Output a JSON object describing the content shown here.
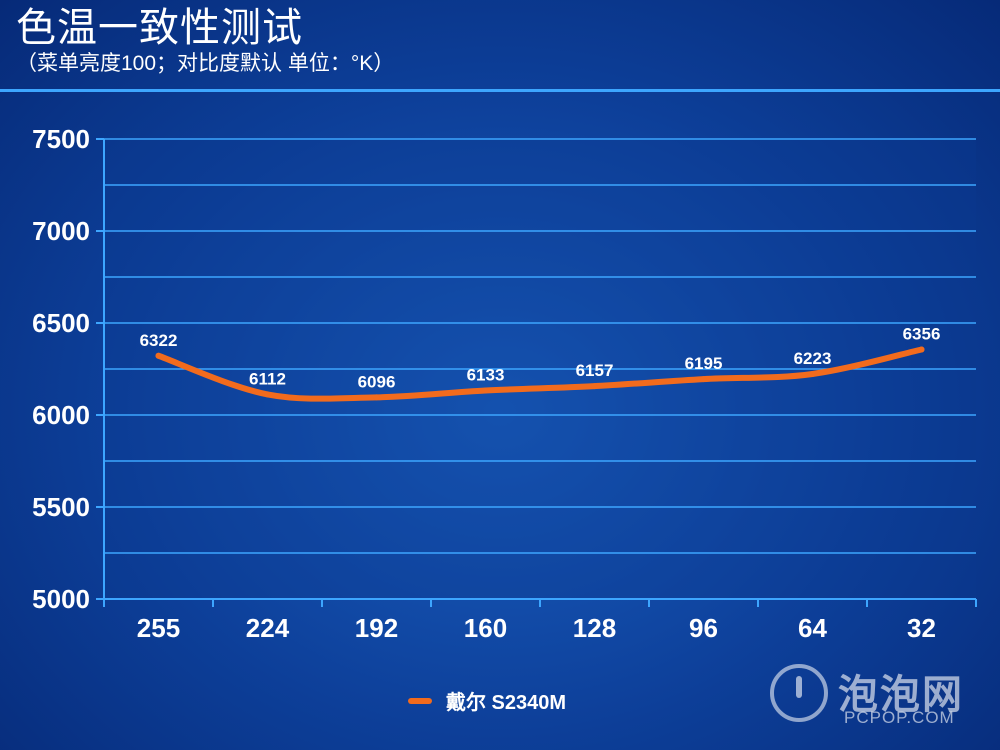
{
  "title": "色温一致性测试",
  "subtitle": "（菜单亮度100；对比度默认 单位：°K）",
  "chart_data": {
    "type": "line",
    "categories": [
      "255",
      "224",
      "192",
      "160",
      "128",
      "96",
      "64",
      "32"
    ],
    "series": [
      {
        "name": "戴尔 S2340M",
        "values": [
          6322,
          6112,
          6096,
          6133,
          6157,
          6195,
          6223,
          6356
        ],
        "color": "#f26b1d"
      }
    ],
    "data_labels": [
      "6322",
      "6112",
      "6096",
      "6133",
      "6157",
      "6195",
      "6223",
      "6356"
    ],
    "ylim": [
      5000,
      7500
    ],
    "y_ticks": [
      "7500",
      "7000",
      "6500",
      "6000",
      "5500",
      "5000"
    ],
    "grid": true,
    "legend_position": "bottom-center"
  },
  "legend": {
    "label": "戴尔 S2340M"
  },
  "watermark": {
    "name": "泡泡网",
    "url": "PCPOP.COM"
  },
  "colors": {
    "background": "#0d3f99",
    "line": "#f26b1d",
    "grid": "#3da6ff"
  }
}
